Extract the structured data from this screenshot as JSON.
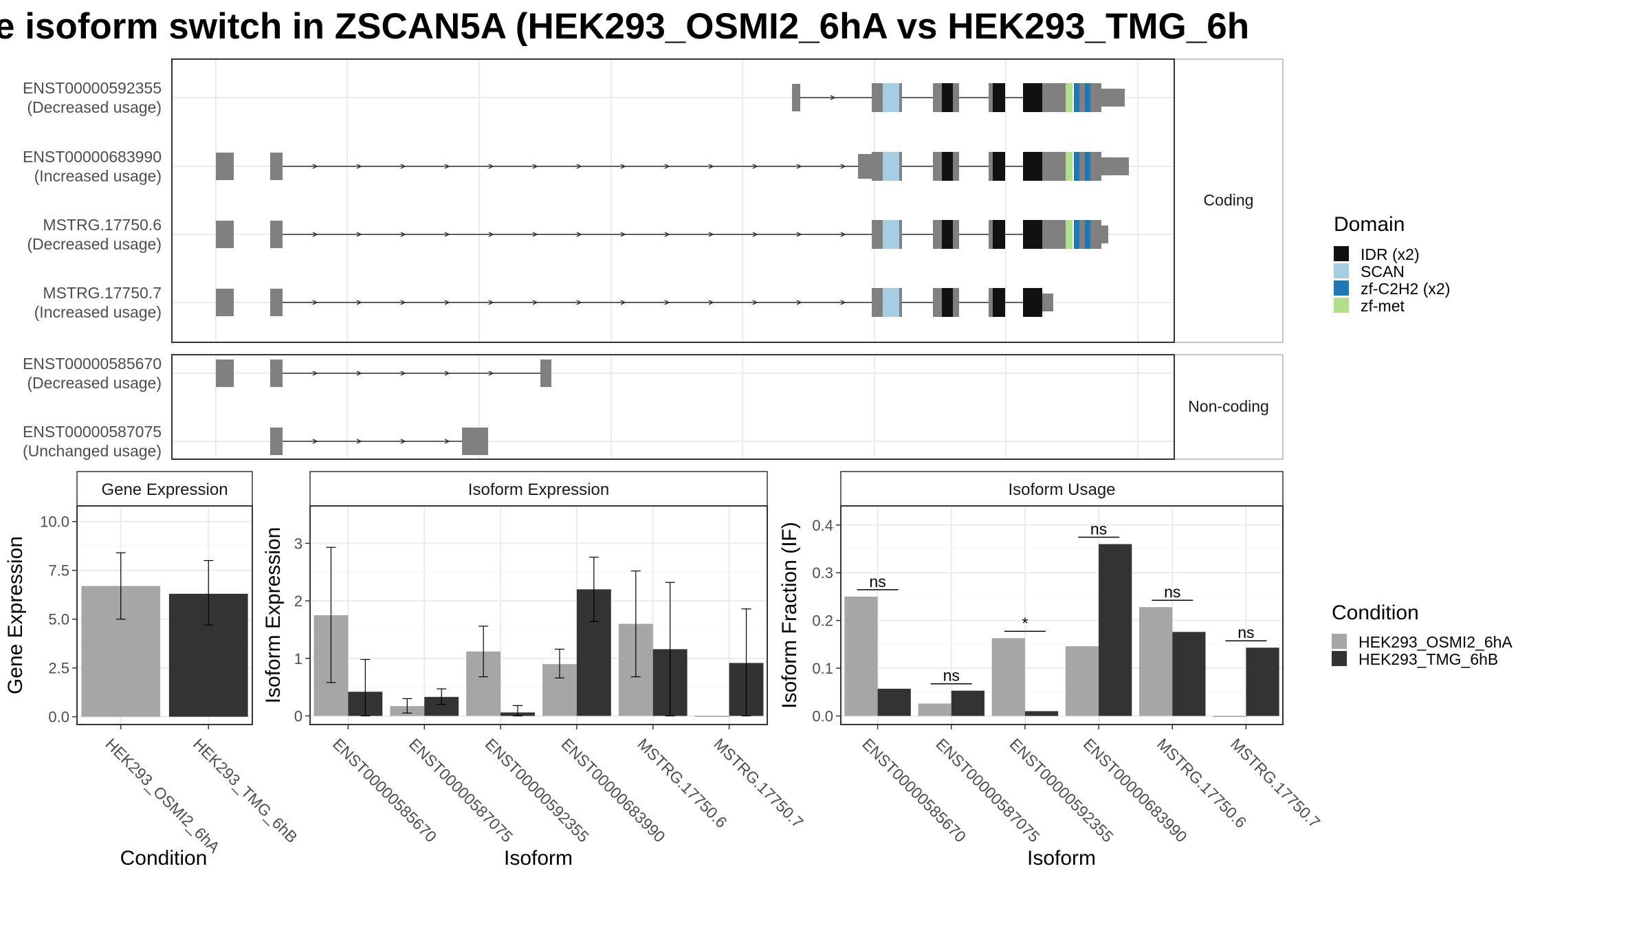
{
  "title": "e isoform switch in ZSCAN5A (HEK293_OSMI2_6hA vs HEK293_TMG_6h",
  "colors": {
    "condition_a": "#a6a6a6",
    "condition_b": "#333333",
    "exon": "#808080",
    "domains": [
      "#111111",
      "#a6cee3",
      "#1f78b4",
      "#b2df8a"
    ]
  },
  "structure": {
    "panels": [
      "Coding",
      "Non-coding"
    ],
    "isoforms": [
      {
        "id": "ENST00000592355",
        "usage": "(Decreased usage)",
        "panel": "Coding"
      },
      {
        "id": "ENST00000683990",
        "usage": "(Increased usage)",
        "panel": "Coding"
      },
      {
        "id": "MSTRG.17750.6",
        "usage": "(Decreased usage)",
        "panel": "Coding"
      },
      {
        "id": "MSTRG.17750.7",
        "usage": "(Increased usage)",
        "panel": "Coding"
      },
      {
        "id": "ENST00000585670",
        "usage": "(Decreased usage)",
        "panel": "Non-coding"
      },
      {
        "id": "ENST00000587075",
        "usage": "(Unchanged usage)",
        "panel": "Non-coding"
      }
    ]
  },
  "legends": {
    "domain_title": "Domain",
    "domain_items": [
      "IDR (x2)",
      "SCAN",
      "zf-C2H2 (x2)",
      "zf-met"
    ],
    "condition_title": "Condition",
    "condition_items": [
      "HEK293_OSMI2_6hA",
      "HEK293_TMG_6hB"
    ]
  },
  "chart_data": [
    {
      "type": "bar",
      "title": "Gene Expression",
      "xlabel": "Condition",
      "ylabel": "Gene Expression",
      "categories": [
        "HEK293_OSMI2_6hA",
        "HEK293_TMG_6hB"
      ],
      "values": [
        6.7,
        6.3
      ],
      "error_low": [
        5.0,
        4.7
      ],
      "error_high": [
        8.4,
        8.0
      ],
      "ylim": [
        -0.4,
        10.8
      ],
      "yticks": [
        0.0,
        2.5,
        5.0,
        7.5,
        10.0
      ],
      "ytick_labels": [
        "0.0",
        "2.5",
        "5.0",
        "7.5",
        "10.0"
      ]
    },
    {
      "type": "bar",
      "title": "Isoform Expression",
      "xlabel": "Isoform",
      "ylabel": "Isoform Expression",
      "categories": [
        "ENST00000585670",
        "ENST00000587075",
        "ENST00000592355",
        "ENST00000683990",
        "MSTRG.17750.6",
        "MSTRG.17750.7"
      ],
      "series": [
        {
          "name": "HEK293_OSMI2_6hA",
          "values": [
            1.75,
            0.17,
            1.12,
            0.9,
            1.6,
            0.0
          ],
          "error_low": [
            0.58,
            0.05,
            0.68,
            0.66,
            0.68,
            0.0
          ],
          "error_high": [
            2.93,
            0.3,
            1.56,
            1.16,
            2.52,
            0.0
          ]
        },
        {
          "name": "HEK293_TMG_6hB",
          "values": [
            0.42,
            0.33,
            0.06,
            2.2,
            1.16,
            0.92
          ],
          "error_low": [
            0.0,
            0.2,
            0.0,
            1.64,
            0.0,
            0.0
          ],
          "error_high": [
            0.98,
            0.47,
            0.18,
            2.76,
            2.32,
            1.86
          ]
        }
      ],
      "ylim": [
        -0.15,
        3.65
      ],
      "yticks": [
        0,
        1,
        2,
        3
      ],
      "ytick_labels": [
        "0",
        "1",
        "2",
        "3"
      ]
    },
    {
      "type": "bar",
      "title": "Isoform Usage",
      "xlabel": "Isoform",
      "ylabel": "Isoform Fraction (IF)",
      "categories": [
        "ENST00000585670",
        "ENST00000587075",
        "ENST00000592355",
        "ENST00000683990",
        "MSTRG.17750.6",
        "MSTRG.17750.7"
      ],
      "series": [
        {
          "name": "HEK293_OSMI2_6hA",
          "values": [
            0.25,
            0.026,
            0.163,
            0.146,
            0.228,
            0.0
          ]
        },
        {
          "name": "HEK293_TMG_6hB",
          "values": [
            0.057,
            0.053,
            0.01,
            0.36,
            0.176,
            0.143
          ]
        }
      ],
      "significance": [
        "ns",
        "ns",
        "*",
        "ns",
        "ns",
        "ns"
      ],
      "ylim": [
        -0.018,
        0.44
      ],
      "yticks": [
        0.0,
        0.1,
        0.2,
        0.3,
        0.4
      ],
      "ytick_labels": [
        "0.0",
        "0.1",
        "0.2",
        "0.3",
        "0.4"
      ]
    }
  ]
}
